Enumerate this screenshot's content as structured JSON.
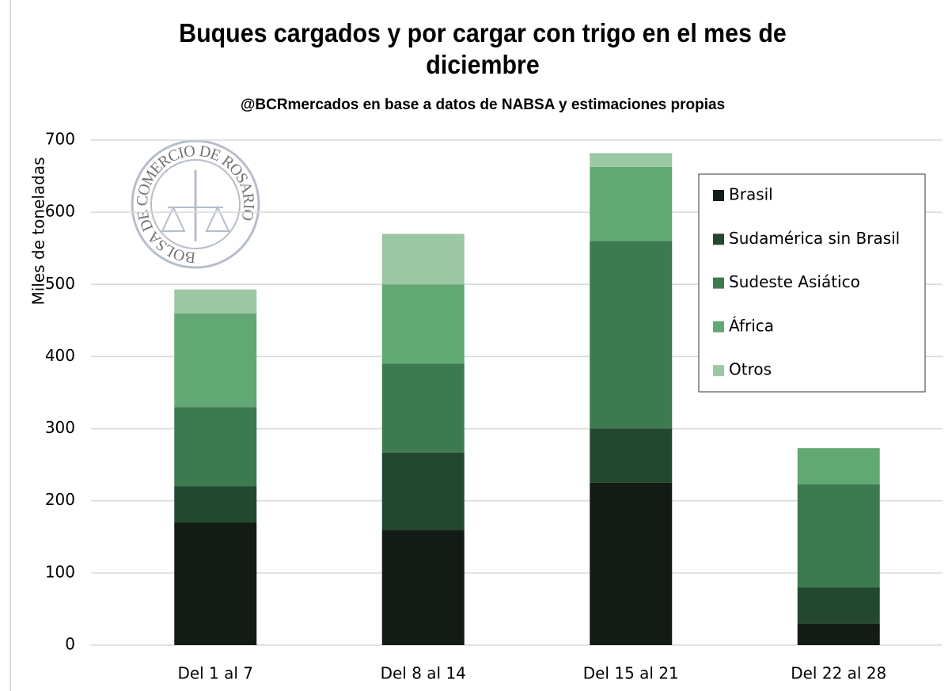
{
  "chart_data": {
    "type": "stacked-bar",
    "title": "Buques cargados y por cargar con trigo en el mes de diciembre",
    "subtitle": "@BCRmercados  en base a datos de NABSA y estimaciones propias",
    "y_label": "Miles de toneladas",
    "watermark": "BOLSA DE COMERCIO DE ROSARIO",
    "categories": [
      "Del 1 al 7",
      "Del 8 al 14",
      "Del 15 al 21",
      "Del 22 al 28"
    ],
    "series": [
      {
        "name": "Brasil",
        "color": "#111c14",
        "values": [
          170,
          160,
          225,
          30
        ]
      },
      {
        "name": "Sudamérica sin Brasil",
        "color": "#24482e",
        "values": [
          50,
          107,
          75,
          50
        ]
      },
      {
        "name": "Sudeste Asiático",
        "color": "#3e7a50",
        "values": [
          110,
          123,
          260,
          143
        ]
      },
      {
        "name": "África",
        "color": "#62a874",
        "values": [
          130,
          110,
          103,
          50
        ]
      },
      {
        "name": "Otros",
        "color": "#9cc7a4",
        "values": [
          33,
          70,
          19,
          0
        ]
      }
    ],
    "ylim": [
      0,
      700
    ],
    "yticks": [
      0,
      100,
      200,
      300,
      400,
      500,
      600,
      700
    ],
    "grid": true,
    "legend": "right"
  }
}
